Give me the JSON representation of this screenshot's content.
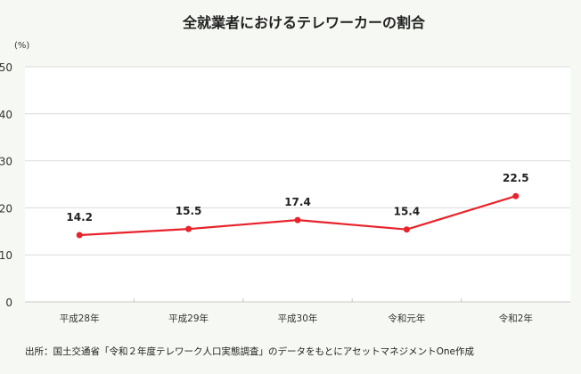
{
  "chart_data": {
    "type": "line",
    "title": "全就業者におけるテレワーカーの割合",
    "ylabel": "(%)",
    "categories": [
      "平成28年",
      "平成29年",
      "平成30年",
      "令和元年",
      "令和2年"
    ],
    "values": [
      14.2,
      15.5,
      17.4,
      15.4,
      22.5
    ],
    "data_labels": [
      "14.2",
      "15.5",
      "17.4",
      "15.4",
      "22.5"
    ],
    "ylim": [
      0,
      50
    ],
    "yticks": [
      0,
      10,
      20,
      30,
      40,
      50
    ],
    "grid": true,
    "series_color": "#e8232b"
  },
  "source": "出所：国土交通省「令和２年度テレワーク人口実態調査」のデータをもとにアセットマネジメントOne作成"
}
